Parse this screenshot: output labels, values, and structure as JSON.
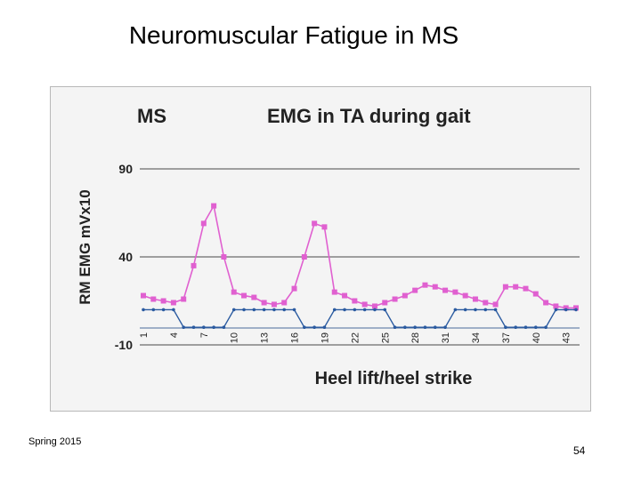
{
  "slide": {
    "title": "Neuromuscular Fatigue in MS",
    "footer": "Spring 2015",
    "page_number": "54"
  },
  "chart_data": {
    "type": "line",
    "title_left": "MS",
    "title": "EMG in TA during gait",
    "xlabel": "Heel lift/heel strike",
    "ylabel": "RM EMG mVx10",
    "ylim": [
      -10,
      90
    ],
    "xlim": [
      1,
      44
    ],
    "yticks": [
      -10,
      40,
      90
    ],
    "xticks": [
      1,
      4,
      7,
      10,
      13,
      16,
      19,
      22,
      25,
      28,
      31,
      34,
      37,
      40,
      43
    ],
    "grid": "horizontal",
    "colors": {
      "series_emg": "#e060d0",
      "series_footswitch": "#2a5aa0"
    },
    "x": [
      1,
      2,
      3,
      4,
      5,
      6,
      7,
      8,
      9,
      10,
      11,
      12,
      13,
      14,
      15,
      16,
      17,
      18,
      19,
      20,
      21,
      22,
      23,
      24,
      25,
      26,
      27,
      28,
      29,
      30,
      31,
      32,
      33,
      34,
      35,
      36,
      37,
      38,
      39,
      40,
      41,
      42,
      43,
      44
    ],
    "series": [
      {
        "values": [
          18,
          16,
          15,
          14,
          16,
          35,
          59,
          69,
          40,
          20,
          18,
          17,
          14,
          13,
          14,
          22,
          40,
          59,
          57,
          20,
          18,
          15,
          13,
          12,
          14,
          16,
          18,
          21,
          24,
          23,
          21,
          20,
          18,
          16,
          14,
          13,
          23,
          23,
          22,
          19,
          14,
          12,
          11,
          11
        ]
      },
      {
        "values": [
          10,
          10,
          10,
          10,
          0,
          0,
          0,
          0,
          0,
          10,
          10,
          10,
          10,
          10,
          10,
          10,
          0,
          0,
          0,
          10,
          10,
          10,
          10,
          10,
          10,
          0,
          0,
          0,
          0,
          0,
          0,
          10,
          10,
          10,
          10,
          10,
          0,
          0,
          0,
          0,
          0,
          10,
          10,
          10
        ]
      }
    ]
  }
}
